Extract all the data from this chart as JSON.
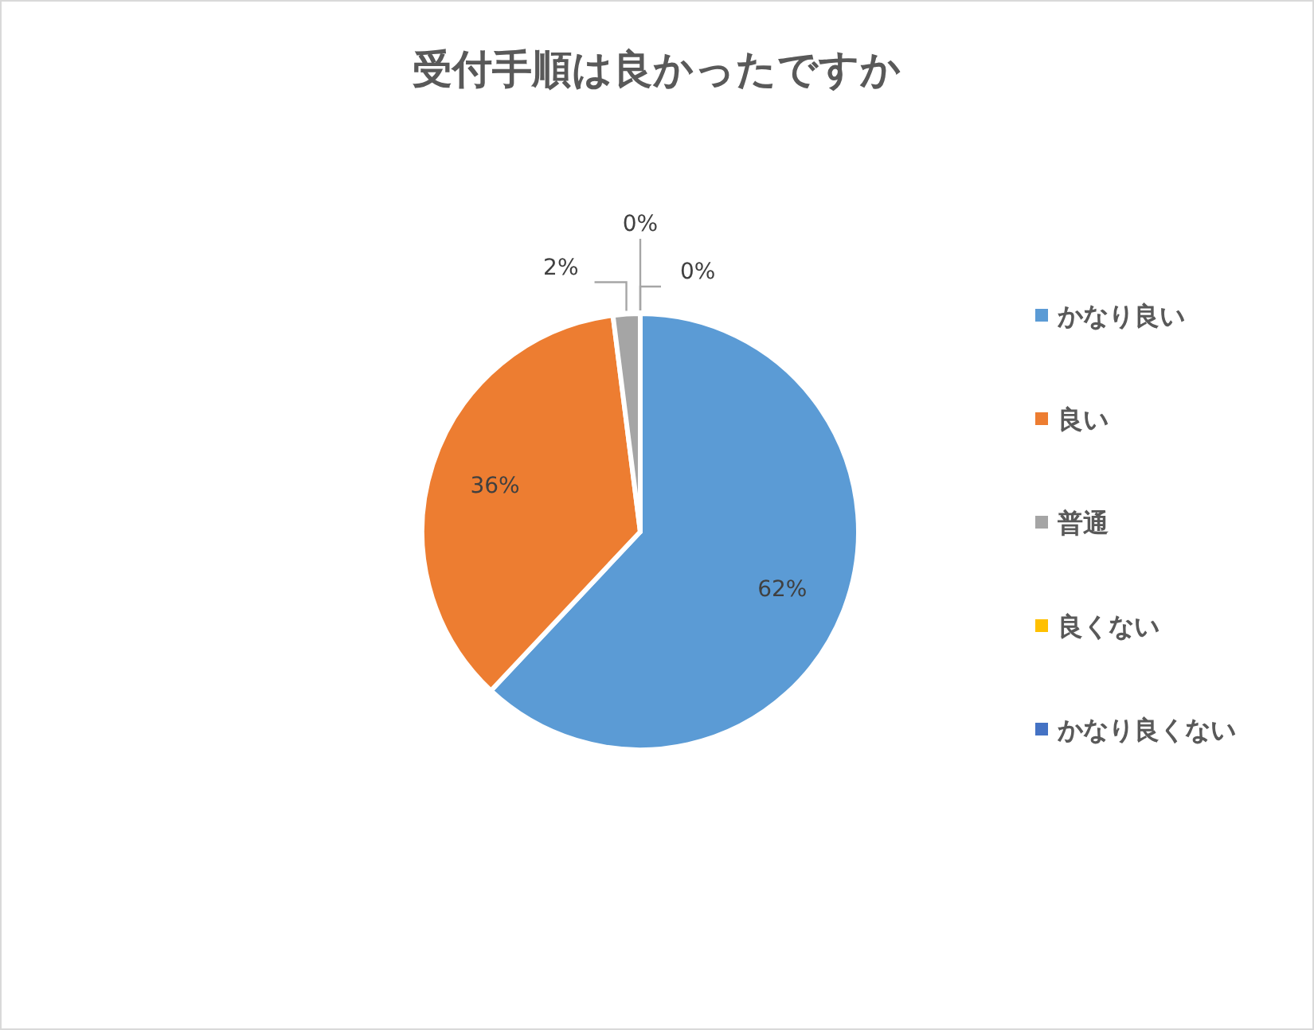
{
  "chart_data": {
    "type": "pie",
    "title": "受付手順は良かったですか",
    "categories": [
      "かなり良い",
      "良い",
      "普通",
      "良くない",
      "かなり良くない"
    ],
    "values": [
      62,
      36,
      2,
      0,
      0
    ],
    "colors": [
      "#5b9bd5",
      "#ed7d31",
      "#a5a5a5",
      "#ffc000",
      "#4472c4"
    ],
    "value_labels": [
      "62%",
      "36%",
      "2%",
      "0%",
      "0%"
    ],
    "legend": "right"
  }
}
